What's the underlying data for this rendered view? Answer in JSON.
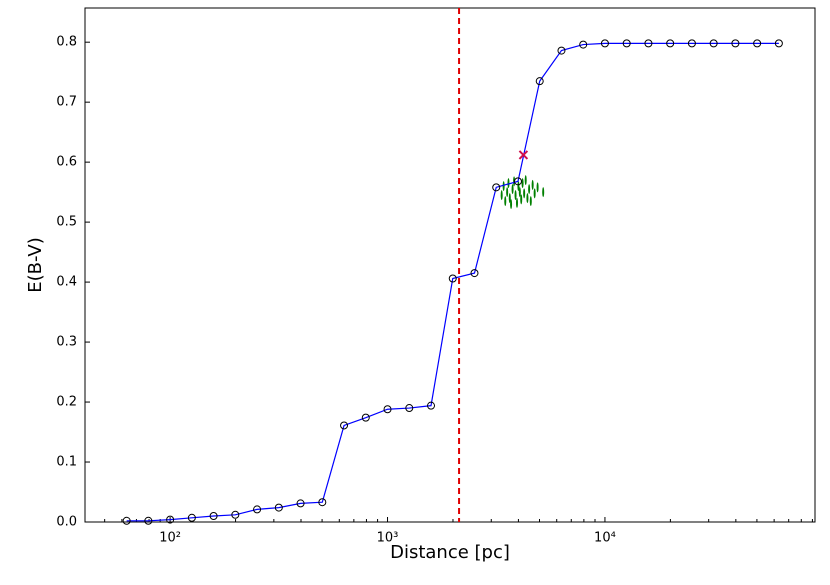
{
  "chart_data": {
    "type": "line",
    "xlabel": "Distance [pc]",
    "ylabel": "E(B-V)",
    "xscale": "log",
    "x": [
      63.1,
      79.4,
      100,
      125.9,
      158.5,
      199.5,
      251.2,
      316.2,
      398.1,
      501.2,
      631,
      794.3,
      1000,
      1258.9,
      1584.9,
      1995.3,
      2511.9,
      3162.3,
      3981.1,
      5011.9,
      6309.6,
      7943.3,
      10000,
      12589.3,
      15848.9,
      19952.6,
      25118.9,
      31622.8,
      39810.7,
      50118.7,
      63095.7
    ],
    "values": [
      0.002,
      0.002,
      0.004,
      0.007,
      0.01,
      0.012,
      0.021,
      0.024,
      0.031,
      0.033,
      0.161,
      0.174,
      0.188,
      0.19,
      0.194,
      0.406,
      0.415,
      0.558,
      0.568,
      0.735,
      0.786,
      0.796,
      0.798,
      0.798,
      0.798,
      0.798,
      0.798,
      0.798,
      0.798,
      0.798,
      0.798
    ],
    "color": "#0000ff",
    "marker_color": "#000000",
    "vline": {
      "x": 2133,
      "color": "#e00000"
    },
    "cross": {
      "x": 4217,
      "value": 0.612,
      "color": "#d0104c"
    },
    "scatter": {
      "color": "#008000",
      "x": [
        3350,
        3420,
        3480,
        3550,
        3600,
        3650,
        3700,
        3760,
        3820,
        3880,
        3940,
        4000,
        4060,
        4120,
        4180,
        4250,
        4320,
        4400,
        4480,
        4560,
        4650,
        4750,
        4900,
        5200
      ],
      "values": [
        0.545,
        0.56,
        0.535,
        0.55,
        0.565,
        0.54,
        0.53,
        0.555,
        0.568,
        0.545,
        0.532,
        0.56,
        0.55,
        0.538,
        0.565,
        0.548,
        0.57,
        0.54,
        0.555,
        0.535,
        0.562,
        0.548,
        0.558,
        0.55
      ]
    },
    "xlim": [
      40.6,
      92500
    ],
    "ylim": [
      0,
      0.857
    ],
    "xticks": [
      {
        "value": 100,
        "label": "10²"
      },
      {
        "value": 1000,
        "label": "10³"
      },
      {
        "value": 10000,
        "label": "10⁴"
      }
    ],
    "xminorticks": [
      50,
      60,
      70,
      80,
      90,
      200,
      300,
      400,
      500,
      600,
      700,
      800,
      900,
      2000,
      3000,
      4000,
      5000,
      6000,
      7000,
      8000,
      9000,
      20000,
      30000,
      40000,
      50000,
      60000,
      70000,
      80000,
      90000
    ],
    "yticks": [
      {
        "value": 0,
        "label": "0.0"
      },
      0.1,
      0.2,
      0.3,
      0.4,
      0.5,
      0.6,
      0.7,
      0.8
    ]
  }
}
